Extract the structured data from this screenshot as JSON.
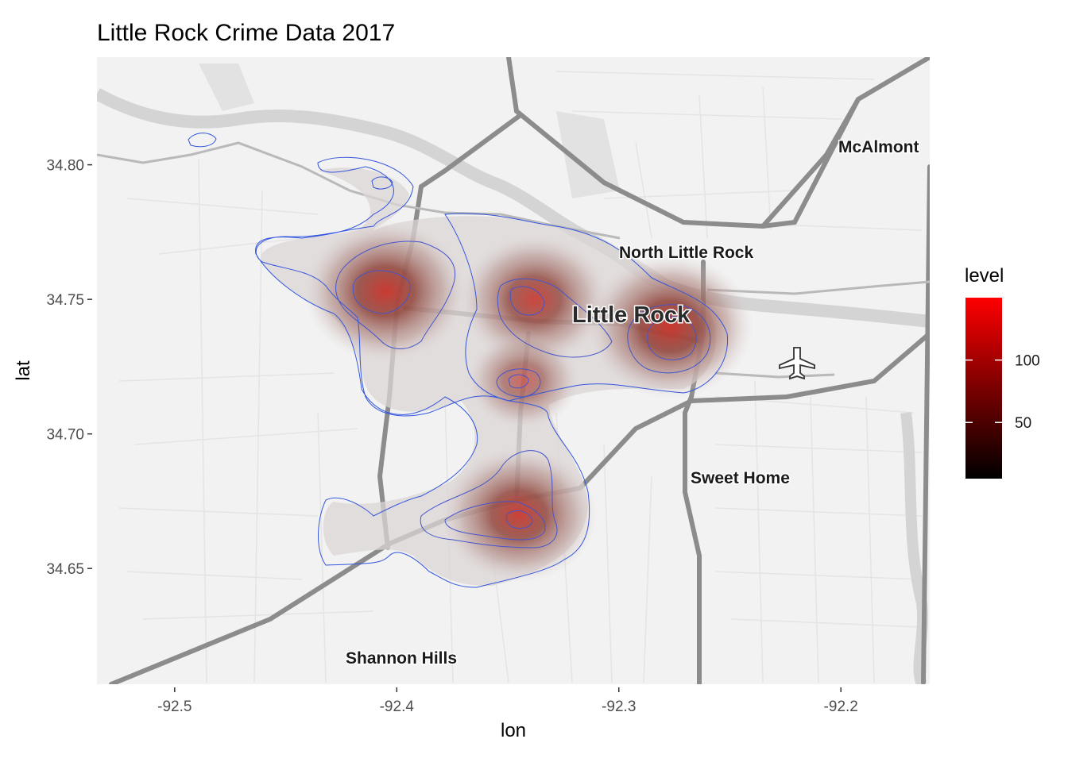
{
  "chart_data": {
    "type": "heatmap",
    "title": "Little Rock Crime Data 2017",
    "xlabel": "lon",
    "ylabel": "lat",
    "xlim": [
      -92.535,
      -92.16
    ],
    "ylim": [
      34.607,
      34.84
    ],
    "x_ticks": [
      -92.5,
      -92.4,
      -92.3,
      -92.2
    ],
    "x_tick_labels": [
      "-92.5",
      "-92.4",
      "-92.3",
      "-92.2"
    ],
    "y_ticks": [
      34.65,
      34.7,
      34.75,
      34.8
    ],
    "y_tick_labels": [
      "34.65",
      "34.70",
      "34.75",
      "34.80"
    ],
    "grid": false,
    "legend": {
      "title": "level",
      "placement": "right",
      "range": [
        5,
        150
      ],
      "ticks": [
        50,
        100
      ],
      "tick_labels": [
        "50",
        "100"
      ],
      "low_color": "#000000",
      "high_color": "#ff0000"
    },
    "contour_color": "#3355dd",
    "hotspots": [
      {
        "lon": -92.405,
        "lat": 34.753,
        "peak_level": 135
      },
      {
        "lon": -92.338,
        "lat": 34.75,
        "peak_level": 115
      },
      {
        "lon": -92.277,
        "lat": 34.74,
        "peak_level": 140
      },
      {
        "lon": -92.345,
        "lat": 34.67,
        "peak_level": 125
      },
      {
        "lon": -92.343,
        "lat": 34.72,
        "peak_level": 60
      }
    ],
    "place_labels": [
      {
        "text": "McAlmont",
        "lon": -92.18,
        "lat": 34.806
      },
      {
        "text": "North Little Rock",
        "lon": -92.29,
        "lat": 34.765
      },
      {
        "text": "Little Rock",
        "lon": -92.31,
        "lat": 34.745,
        "emphasis": true
      },
      {
        "text": "Sweet Home",
        "lon": -92.26,
        "lat": 34.685
      },
      {
        "text": "Shannon Hills",
        "lon": -92.405,
        "lat": 34.618
      }
    ]
  }
}
